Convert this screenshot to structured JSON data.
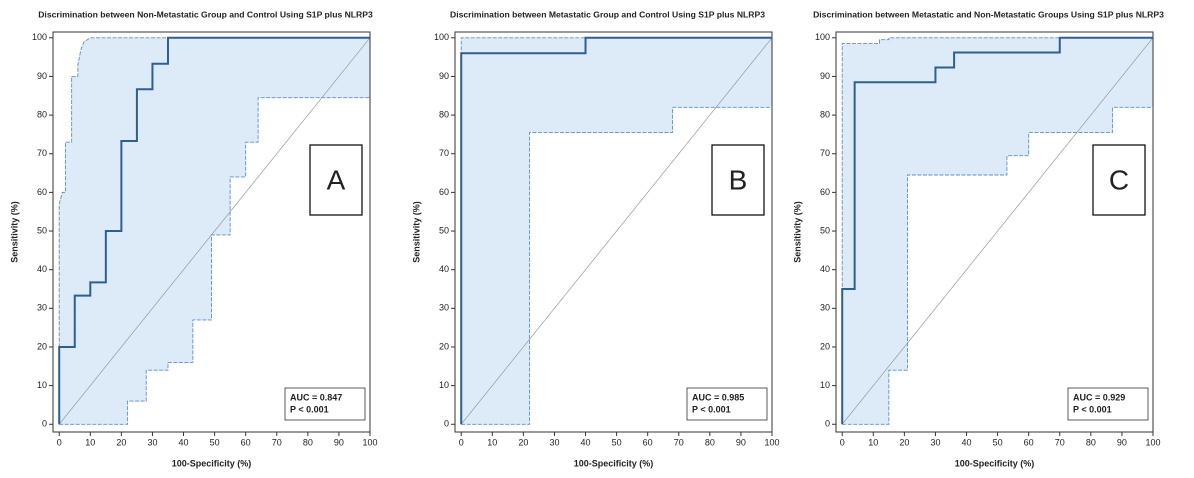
{
  "chart_data": [
    {
      "type": "roc",
      "title": "Discrimination between Non-Metastatic Group and Control Using S1P plus NLRP3",
      "panel_label": "A",
      "x_label": "100-Specificity (%)",
      "y_label": "Sensitivity (%)",
      "annotations": [
        "AUC = 0.847",
        "P < 0.001"
      ],
      "xlim": [
        -2,
        100
      ],
      "ylim": [
        -2,
        101.5
      ],
      "xticks": [
        0,
        10,
        20,
        30,
        40,
        50,
        60,
        70,
        80,
        90,
        100
      ],
      "yticks": [
        0,
        10,
        20,
        30,
        40,
        50,
        60,
        70,
        80,
        90,
        100
      ],
      "color": "#2f5f8f",
      "ci_color": "#5b8fc7",
      "band_color": "#ddebf8",
      "roc": {
        "x": [
          0,
          0,
          5,
          5,
          10,
          10,
          15,
          15,
          20,
          20,
          25,
          25,
          30,
          30,
          35,
          35,
          100
        ],
        "y": [
          0,
          20,
          20,
          33.3,
          33.3,
          36.7,
          36.7,
          50,
          50,
          73.3,
          73.3,
          86.7,
          86.7,
          93.3,
          93.3,
          100,
          100
        ]
      },
      "ci_upper": {
        "x": [
          0,
          0,
          1,
          2,
          2,
          4,
          4,
          6,
          6,
          7,
          8,
          10,
          100
        ],
        "y": [
          0,
          57,
          60,
          60,
          73,
          73,
          90,
          90,
          93,
          97,
          99,
          100,
          100
        ]
      },
      "ci_lower": {
        "x": [
          0,
          22,
          22,
          28,
          28,
          35,
          35,
          43,
          43,
          49,
          49,
          55,
          55,
          60,
          60,
          64,
          64,
          100
        ],
        "y": [
          0,
          0,
          6,
          6,
          14,
          14,
          16,
          16,
          27,
          27,
          49,
          49,
          64,
          64,
          73,
          73,
          84.5,
          84.5
        ]
      }
    },
    {
      "type": "roc",
      "title": "Discrimination between Metastatic Group and Control Using S1P plus NLRP3",
      "panel_label": "B",
      "x_label": "100-Specificity (%)",
      "y_label": "Sensitivity (%)",
      "annotations": [
        "AUC = 0.985",
        "P < 0.001"
      ],
      "xlim": [
        -2,
        100
      ],
      "ylim": [
        -2,
        101.5
      ],
      "xticks": [
        0,
        10,
        20,
        30,
        40,
        50,
        60,
        70,
        80,
        90,
        100
      ],
      "yticks": [
        0,
        10,
        20,
        30,
        40,
        50,
        60,
        70,
        80,
        90,
        100
      ],
      "color": "#2f5f8f",
      "ci_color": "#5b8fc7",
      "band_color": "#ddebf8",
      "roc": {
        "x": [
          0,
          0,
          40,
          40,
          100
        ],
        "y": [
          0,
          96,
          96,
          100,
          100
        ]
      },
      "ci_upper": {
        "x": [
          0,
          0,
          100
        ],
        "y": [
          0,
          100,
          100
        ]
      },
      "ci_lower": {
        "x": [
          0,
          22,
          22,
          68,
          68,
          100
        ],
        "y": [
          0,
          0,
          75.5,
          75.5,
          82,
          82
        ]
      }
    },
    {
      "type": "roc",
      "title": "Discrimination between Metastatic and Non-Metastatic Groups Using S1P plus NLRP3",
      "panel_label": "C",
      "x_label": "100-Specificity (%)",
      "y_label": "Sensitivity (%)",
      "annotations": [
        "AUC = 0.929",
        "P < 0.001"
      ],
      "xlim": [
        -2,
        100
      ],
      "ylim": [
        -2,
        101.5
      ],
      "xticks": [
        0,
        10,
        20,
        30,
        40,
        50,
        60,
        70,
        80,
        90,
        100
      ],
      "yticks": [
        0,
        10,
        20,
        30,
        40,
        50,
        60,
        70,
        80,
        90,
        100
      ],
      "color": "#2f5f8f",
      "ci_color": "#5b8fc7",
      "band_color": "#ddebf8",
      "roc": {
        "x": [
          0,
          0,
          4,
          4,
          30,
          30,
          36,
          36,
          70,
          70,
          100
        ],
        "y": [
          0,
          35,
          35,
          88.5,
          88.5,
          92.3,
          92.3,
          96.2,
          96.2,
          100,
          100
        ]
      },
      "ci_upper": {
        "x": [
          0,
          0,
          12,
          12,
          15,
          15,
          100
        ],
        "y": [
          0,
          98.5,
          98.5,
          99.5,
          99.5,
          100,
          100
        ]
      },
      "ci_lower": {
        "x": [
          0,
          15,
          15,
          21,
          21,
          53,
          53,
          60,
          60,
          87,
          87,
          100
        ],
        "y": [
          0,
          0,
          14,
          14,
          64.5,
          64.5,
          69.5,
          69.5,
          75.5,
          75.5,
          82,
          82
        ]
      }
    }
  ]
}
